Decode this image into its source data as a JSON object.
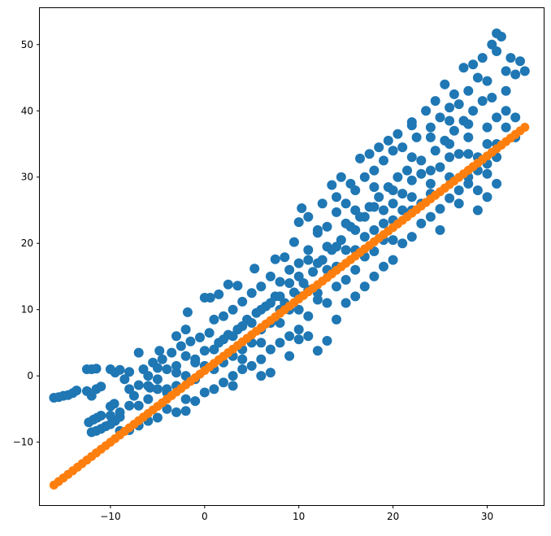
{
  "chart_data": {
    "type": "scatter",
    "title": "",
    "xlabel": "",
    "ylabel": "",
    "xlim": [
      -17.5,
      36.0
    ],
    "ylim": [
      -19.5,
      55.5
    ],
    "xticks": [
      -10,
      0,
      10,
      20,
      30
    ],
    "yticks": [
      -10,
      0,
      10,
      20,
      30,
      40,
      50
    ],
    "xtick_labels": [
      "−10",
      "0",
      "10",
      "20",
      "30"
    ],
    "ytick_labels": [
      "−10",
      "0",
      "10",
      "20",
      "30",
      "40",
      "50"
    ],
    "grid": false,
    "legend": "none",
    "series": [
      {
        "color": "#1f77b4",
        "points": [
          [
            -16,
            -3.3
          ],
          [
            -15.5,
            -3.2
          ],
          [
            -15,
            -3
          ],
          [
            -14.5,
            -2.9
          ],
          [
            -14,
            -2.6
          ],
          [
            -13.6,
            -2.2
          ],
          [
            -12.5,
            1
          ],
          [
            -12,
            1
          ],
          [
            -11.5,
            1.1
          ],
          [
            -12.5,
            -2.3
          ],
          [
            -11.5,
            -2
          ],
          [
            -11,
            -1.6
          ],
          [
            -12.3,
            -7
          ],
          [
            -11.8,
            -6.6
          ],
          [
            -11.4,
            -6.3
          ],
          [
            -11,
            -6
          ],
          [
            -12,
            -8.5
          ],
          [
            -11.5,
            -8.3
          ],
          [
            -11,
            -8
          ],
          [
            -10.5,
            -7.6
          ],
          [
            -10,
            -7.3
          ],
          [
            -9.5,
            -6.8
          ],
          [
            -9,
            -6.2
          ],
          [
            -10,
            -4.6
          ],
          [
            -9.6,
            -4.2
          ],
          [
            -10,
            1
          ],
          [
            -9.5,
            0.5
          ],
          [
            -9,
            0.9
          ],
          [
            -8.5,
            -0.5
          ],
          [
            -8,
            0.6
          ],
          [
            -8,
            -2
          ],
          [
            -7.5,
            -3
          ],
          [
            -7,
            -1.4
          ],
          [
            -7,
            3.5
          ],
          [
            -6.5,
            1
          ],
          [
            -6,
            0
          ],
          [
            -5.8,
            -1.8
          ],
          [
            -5.5,
            2
          ],
          [
            -5,
            1.2
          ],
          [
            -4.8,
            3.8
          ],
          [
            -4.5,
            2.5
          ],
          [
            -4,
            1
          ],
          [
            -4,
            -2.5
          ],
          [
            -3.5,
            3.5
          ],
          [
            -3,
            6
          ],
          [
            -3,
            1.5
          ],
          [
            -2.5,
            4.5
          ],
          [
            -2,
            3
          ],
          [
            -2,
            7
          ],
          [
            -1.8,
            9.6
          ],
          [
            -1.5,
            5.2
          ],
          [
            -1,
            2.5
          ],
          [
            -0.5,
            5.8
          ],
          [
            0,
            3.8
          ],
          [
            0,
            11.8
          ],
          [
            0.5,
            6.5
          ],
          [
            0.6,
            11.8
          ],
          [
            1,
            8.5
          ],
          [
            1.5,
            5
          ],
          [
            1.5,
            12.3
          ],
          [
            2,
            9
          ],
          [
            2.5,
            6.2
          ],
          [
            2.5,
            13.8
          ],
          [
            3,
            10
          ],
          [
            3.5,
            7
          ],
          [
            3.5,
            13.6
          ],
          [
            4,
            11.2
          ],
          [
            4.5,
            8.5
          ],
          [
            5,
            12.5
          ],
          [
            5.3,
            16.2
          ],
          [
            5.5,
            9.5
          ],
          [
            6,
            13.5
          ],
          [
            6.5,
            10.5
          ],
          [
            7,
            15
          ],
          [
            7.5,
            12
          ],
          [
            7.5,
            17.6
          ],
          [
            8,
            14.2
          ],
          [
            8.5,
            11
          ],
          [
            8.5,
            17.9
          ],
          [
            9,
            16
          ],
          [
            9.5,
            12.6
          ],
          [
            9.5,
            20.2
          ],
          [
            10,
            17
          ],
          [
            10,
            23.2
          ],
          [
            10.3,
            25.3
          ],
          [
            10.5,
            14
          ],
          [
            11,
            19
          ],
          [
            11.5,
            15.7
          ],
          [
            11,
            24
          ],
          [
            12,
            21.6
          ],
          [
            12.5,
            17.5
          ],
          [
            12.5,
            26
          ],
          [
            13,
            22.5
          ],
          [
            13.5,
            19
          ],
          [
            13.5,
            28.8
          ],
          [
            14,
            24.7
          ],
          [
            14.5,
            20.5
          ],
          [
            14.5,
            30
          ],
          [
            15,
            26
          ],
          [
            15.5,
            22.5
          ],
          [
            15.5,
            29
          ],
          [
            16,
            28
          ],
          [
            16.5,
            24
          ],
          [
            16.5,
            32.8
          ],
          [
            17,
            30
          ],
          [
            17.5,
            25.5
          ],
          [
            17.5,
            33.5
          ],
          [
            18,
            31
          ],
          [
            18.5,
            27
          ],
          [
            18.5,
            34.5
          ],
          [
            19,
            32.5
          ],
          [
            19.5,
            28.5
          ],
          [
            19.5,
            35.5
          ],
          [
            20,
            34
          ],
          [
            20.5,
            30
          ],
          [
            20.5,
            36.5
          ],
          [
            21,
            34.5
          ],
          [
            21.5,
            31
          ],
          [
            22,
            37.8
          ],
          [
            22,
            38.3
          ],
          [
            22.5,
            36
          ],
          [
            23,
            32.5
          ],
          [
            23.5,
            40
          ],
          [
            24,
            37.5
          ],
          [
            24.5,
            34
          ],
          [
            24.5,
            41.5
          ],
          [
            25,
            39
          ],
          [
            25.5,
            35.5
          ],
          [
            25.5,
            44
          ],
          [
            26,
            40.5
          ],
          [
            26.5,
            37
          ],
          [
            26.5,
            42.5
          ],
          [
            27,
            41
          ],
          [
            27.5,
            38.5
          ],
          [
            27.5,
            46.5
          ],
          [
            28,
            43
          ],
          [
            28.5,
            40
          ],
          [
            28.5,
            47
          ],
          [
            29,
            45
          ],
          [
            29.5,
            41.5
          ],
          [
            29.5,
            48
          ],
          [
            30,
            44.5
          ],
          [
            30.5,
            42
          ],
          [
            30.5,
            50
          ],
          [
            31,
            49
          ],
          [
            31,
            51.7
          ],
          [
            31.5,
            51.2
          ],
          [
            32,
            46
          ],
          [
            32.5,
            48
          ],
          [
            33,
            45.5
          ],
          [
            33.5,
            47.5
          ],
          [
            34,
            46
          ],
          [
            28,
            29
          ],
          [
            30,
            35
          ],
          [
            31,
            39
          ],
          [
            32,
            40
          ],
          [
            33,
            36
          ],
          [
            29,
            25
          ],
          [
            30,
            27
          ],
          [
            31,
            29
          ],
          [
            25,
            22
          ],
          [
            27,
            26
          ],
          [
            23,
            26
          ],
          [
            26,
            35
          ],
          [
            28,
            36
          ],
          [
            24,
            27.5
          ],
          [
            22,
            25
          ],
          [
            20,
            23.5
          ],
          [
            19,
            20.5
          ],
          [
            18,
            18.8
          ],
          [
            17,
            18
          ],
          [
            16,
            16
          ],
          [
            15,
            14.5
          ],
          [
            14,
            13.5
          ],
          [
            13,
            11
          ],
          [
            12,
            11.5
          ],
          [
            11,
            9
          ],
          [
            10,
            7
          ],
          [
            9,
            6
          ],
          [
            8,
            5
          ],
          [
            7,
            4
          ],
          [
            6,
            2.5
          ],
          [
            5,
            1.5
          ],
          [
            4,
            1
          ],
          [
            3,
            0
          ],
          [
            2,
            -1
          ],
          [
            1,
            -2
          ],
          [
            0,
            -2.5
          ],
          [
            -1,
            -3.8
          ],
          [
            -2,
            -3.5
          ],
          [
            -3,
            -5.5
          ],
          [
            -4,
            -5
          ],
          [
            -5,
            -6.3
          ],
          [
            -6,
            -6.8
          ],
          [
            -7,
            -7.5
          ],
          [
            -8,
            -8.2
          ],
          [
            -9,
            -8.3
          ],
          [
            7,
            0.5
          ],
          [
            10,
            5.5
          ],
          [
            12,
            3.8
          ],
          [
            13,
            5.3
          ],
          [
            14,
            8.5
          ],
          [
            16,
            12
          ],
          [
            18,
            15
          ],
          [
            20,
            17.5
          ],
          [
            22,
            21
          ],
          [
            24,
            24
          ],
          [
            26,
            26.8
          ],
          [
            28,
            30
          ],
          [
            30,
            32
          ],
          [
            31,
            33
          ],
          [
            29,
            31
          ],
          [
            27,
            28
          ],
          [
            25,
            25.2
          ],
          [
            23,
            23
          ],
          [
            21,
            20
          ],
          [
            19,
            16.5
          ],
          [
            17,
            13.5
          ],
          [
            15,
            11
          ],
          [
            11,
            6
          ],
          [
            9,
            3
          ],
          [
            6,
            0
          ],
          [
            3,
            -1.5
          ],
          [
            -2,
            -5.3
          ],
          [
            -5,
            -2
          ],
          [
            -7,
            -4.5
          ],
          [
            -9,
            -5.5
          ],
          [
            -10,
            -6
          ],
          [
            -12,
            -3
          ],
          [
            4,
            4
          ],
          [
            6,
            7
          ],
          [
            8,
            8
          ],
          [
            10,
            10
          ],
          [
            12,
            12.5
          ],
          [
            14,
            16.5
          ],
          [
            16,
            19
          ],
          [
            18,
            22
          ],
          [
            20,
            26
          ],
          [
            22,
            29.5
          ],
          [
            24,
            31
          ],
          [
            26,
            33
          ],
          [
            28,
            33.5
          ],
          [
            30,
            37.5
          ],
          [
            32,
            43
          ],
          [
            12,
            22
          ],
          [
            14,
            27
          ],
          [
            16,
            25
          ],
          [
            18,
            28.5
          ],
          [
            20,
            28
          ],
          [
            22,
            33
          ],
          [
            24,
            36
          ],
          [
            26,
            38.5
          ],
          [
            21,
            25
          ],
          [
            19,
            23
          ],
          [
            17,
            21
          ],
          [
            15,
            19
          ],
          [
            13,
            16
          ],
          [
            11,
            13
          ],
          [
            9,
            10
          ],
          [
            7,
            8
          ],
          [
            5,
            5
          ],
          [
            3,
            3
          ],
          [
            1,
            1
          ],
          [
            -1,
            -0.5
          ],
          [
            -3,
            -1.5
          ],
          [
            -6,
            -3.5
          ],
          [
            -8,
            -4.5
          ],
          [
            8,
            12
          ],
          [
            10,
            15
          ],
          [
            6,
            10
          ],
          [
            4,
            7.5
          ],
          [
            2,
            5.5
          ],
          [
            0,
            1.5
          ],
          [
            -2,
            0
          ],
          [
            -4,
            -2
          ],
          [
            -6,
            -1.5
          ],
          [
            30,
            30.5
          ],
          [
            31,
            35
          ],
          [
            32,
            37.5
          ],
          [
            33,
            39
          ],
          [
            29,
            28
          ],
          [
            27,
            33.5
          ],
          [
            25,
            31.5
          ],
          [
            23,
            30.5
          ],
          [
            21,
            27.5
          ],
          [
            20,
            20.5
          ],
          [
            18,
            25.5
          ],
          [
            16,
            22
          ],
          [
            14,
            19.5
          ],
          [
            12,
            17
          ],
          [
            10,
            12
          ],
          [
            8,
            10
          ],
          [
            6,
            5
          ],
          [
            4,
            2.5
          ],
          [
            2,
            2
          ],
          [
            29,
            33
          ],
          [
            28,
            38
          ],
          [
            26,
            30
          ],
          [
            24,
            29
          ],
          [
            22,
            27
          ],
          [
            19,
            25
          ],
          [
            17,
            24
          ],
          [
            15,
            23
          ],
          [
            13,
            19.5
          ],
          [
            11,
            17.5
          ],
          [
            9,
            14
          ],
          [
            7,
            11
          ],
          [
            5,
            8
          ],
          [
            3,
            6
          ],
          [
            1,
            4
          ],
          [
            -1,
            2
          ],
          [
            -3,
            0.5
          ],
          [
            -5,
            -0.5
          ]
        ]
      },
      {
        "color": "#ff7f0e",
        "x_range": [
          -16,
          34
        ],
        "line": {
          "slope": 1.08,
          "intercept": 0.8
        }
      }
    ]
  }
}
